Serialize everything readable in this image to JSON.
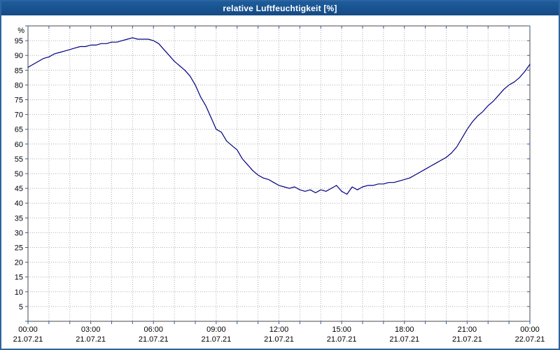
{
  "window": {
    "title": "relative Luftfeuchtigkeit [%]"
  },
  "chart_data": {
    "type": "line",
    "title": "relative Luftfeuchtigkeit [%]",
    "xlabel": "",
    "ylabel": "%",
    "ylim": [
      0,
      100
    ],
    "xlim_hours": [
      0,
      24
    ],
    "grid": "dotted, every 1 hour vertical, every 5 % horizontal",
    "legend_position": "none",
    "y_ticks": [
      95,
      90,
      85,
      80,
      75,
      70,
      65,
      60,
      55,
      50,
      45,
      40,
      35,
      30,
      25,
      20,
      15,
      10,
      5
    ],
    "x_ticks": [
      {
        "hour": 0,
        "time": "00:00",
        "date": "21.07.21"
      },
      {
        "hour": 3,
        "time": "03:00",
        "date": "21.07.21"
      },
      {
        "hour": 6,
        "time": "06:00",
        "date": "21.07.21"
      },
      {
        "hour": 9,
        "time": "09:00",
        "date": "21.07.21"
      },
      {
        "hour": 12,
        "time": "12:00",
        "date": "21.07.21"
      },
      {
        "hour": 15,
        "time": "15:00",
        "date": "21.07.21"
      },
      {
        "hour": 18,
        "time": "18:00",
        "date": "21.07.21"
      },
      {
        "hour": 21,
        "time": "21:00",
        "date": "21.07.21"
      },
      {
        "hour": 24,
        "time": "00:00",
        "date": "22.07.21"
      }
    ],
    "colors": {
      "line": "#000080",
      "grid": "#b0b0b0",
      "frame": "#4a4a4a",
      "ticks": "#2f5fa5",
      "titlebar": "#1a5492"
    },
    "series": [
      {
        "name": "relative Luftfeuchtigkeit",
        "unit": "%",
        "x": [
          0.0,
          0.25,
          0.5,
          0.75,
          1.0,
          1.25,
          1.5,
          1.75,
          2.0,
          2.25,
          2.5,
          2.75,
          3.0,
          3.25,
          3.5,
          3.75,
          4.0,
          4.25,
          4.5,
          4.75,
          5.0,
          5.25,
          5.5,
          5.75,
          6.0,
          6.25,
          6.5,
          6.75,
          7.0,
          7.25,
          7.5,
          7.75,
          8.0,
          8.25,
          8.5,
          8.75,
          9.0,
          9.25,
          9.5,
          9.75,
          10.0,
          10.25,
          10.5,
          10.75,
          11.0,
          11.25,
          11.5,
          11.75,
          12.0,
          12.25,
          12.5,
          12.75,
          13.0,
          13.25,
          13.5,
          13.75,
          14.0,
          14.25,
          14.5,
          14.75,
          15.0,
          15.25,
          15.5,
          15.75,
          16.0,
          16.25,
          16.5,
          16.75,
          17.0,
          17.25,
          17.5,
          17.75,
          18.0,
          18.25,
          18.5,
          18.75,
          19.0,
          19.25,
          19.5,
          19.75,
          20.0,
          20.25,
          20.5,
          20.75,
          21.0,
          21.25,
          21.5,
          21.75,
          22.0,
          22.25,
          22.5,
          22.75,
          23.0,
          23.25,
          23.5,
          23.75,
          24.0
        ],
        "y": [
          86,
          87,
          88,
          89,
          89.5,
          90.5,
          91,
          91.5,
          92,
          92.5,
          93,
          93,
          93.5,
          93.5,
          94,
          94,
          94.5,
          94.5,
          95,
          95.5,
          96,
          95.5,
          95.5,
          95.5,
          95,
          94,
          92,
          90,
          88,
          86.5,
          85,
          83,
          80,
          76,
          73,
          69,
          65,
          64,
          61,
          59.5,
          58,
          55,
          53,
          51,
          49.5,
          48.5,
          48,
          47,
          46,
          45.5,
          45,
          45.5,
          44.5,
          44,
          44.5,
          43.5,
          44.5,
          44,
          45,
          46,
          44,
          43,
          45.5,
          44.5,
          45.5,
          46,
          46,
          46.5,
          46.5,
          47,
          47,
          47.5,
          48,
          48.5,
          49.5,
          50.5,
          51.5,
          52.5,
          53.5,
          54.5,
          55.5,
          57,
          59,
          62,
          65,
          67.5,
          69.5,
          71,
          73,
          74.5,
          76.5,
          78.5,
          80,
          81,
          82.5,
          84.5,
          87
        ]
      }
    ]
  }
}
